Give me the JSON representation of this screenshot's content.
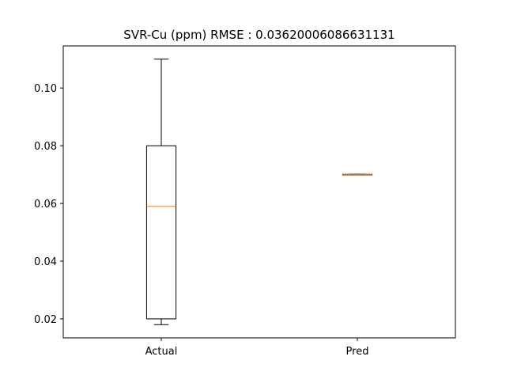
{
  "chart_data": {
    "type": "box",
    "title": "SVR-Cu (ppm) RMSE : 0.03620006086631131",
    "xlabel": "",
    "ylabel": "",
    "categories": [
      "Actual",
      "Pred"
    ],
    "boxes": [
      {
        "label": "Actual",
        "whislo": 0.018,
        "q1": 0.02,
        "med": 0.059,
        "q3": 0.08,
        "whishi": 0.11
      },
      {
        "label": "Pred",
        "whislo": 0.0699,
        "q1": 0.0699,
        "med": 0.07,
        "q3": 0.0701,
        "whishi": 0.0701
      }
    ],
    "yticks": [
      0.02,
      0.04,
      0.06,
      0.08,
      0.1
    ],
    "ytick_labels": [
      "0.02",
      "0.04",
      "0.06",
      "0.08",
      "0.10"
    ],
    "ylim": [
      0.0134,
      0.1146
    ],
    "grid": false,
    "legend": "none",
    "colors": {
      "box": "#000000",
      "median": "#ff7f0e",
      "background": "#ffffff"
    }
  }
}
